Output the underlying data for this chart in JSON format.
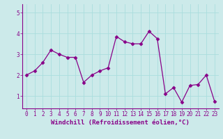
{
  "x": [
    0,
    1,
    2,
    3,
    4,
    5,
    6,
    7,
    8,
    9,
    10,
    11,
    12,
    13,
    14,
    15,
    16,
    17,
    18,
    19,
    20,
    21,
    22,
    23
  ],
  "y": [
    2.0,
    2.2,
    2.6,
    3.2,
    3.0,
    2.85,
    2.85,
    1.65,
    2.0,
    2.2,
    2.35,
    3.85,
    3.6,
    3.5,
    3.5,
    4.1,
    3.75,
    1.1,
    1.4,
    0.7,
    1.5,
    1.55,
    2.0,
    0.75
  ],
  "xlabel": "Windchill (Refroidissement éolien,°C)",
  "ylim": [
    0.4,
    5.4
  ],
  "xlim": [
    -0.5,
    23.5
  ],
  "yticks": [
    1,
    2,
    3,
    4,
    5
  ],
  "xticks": [
    0,
    1,
    2,
    3,
    4,
    5,
    6,
    7,
    8,
    9,
    10,
    11,
    12,
    13,
    14,
    15,
    16,
    17,
    18,
    19,
    20,
    21,
    22,
    23
  ],
  "line_color": "#880088",
  "marker": "D",
  "marker_size": 2.5,
  "bg_color": "#cceaea",
  "grid_color": "#aadddd",
  "tick_label_fontsize": 5.5,
  "xlabel_fontsize": 6.5,
  "xlabel_color": "#880088",
  "tick_color": "#880088",
  "spine_color": "#880088",
  "line_width": 0.9
}
